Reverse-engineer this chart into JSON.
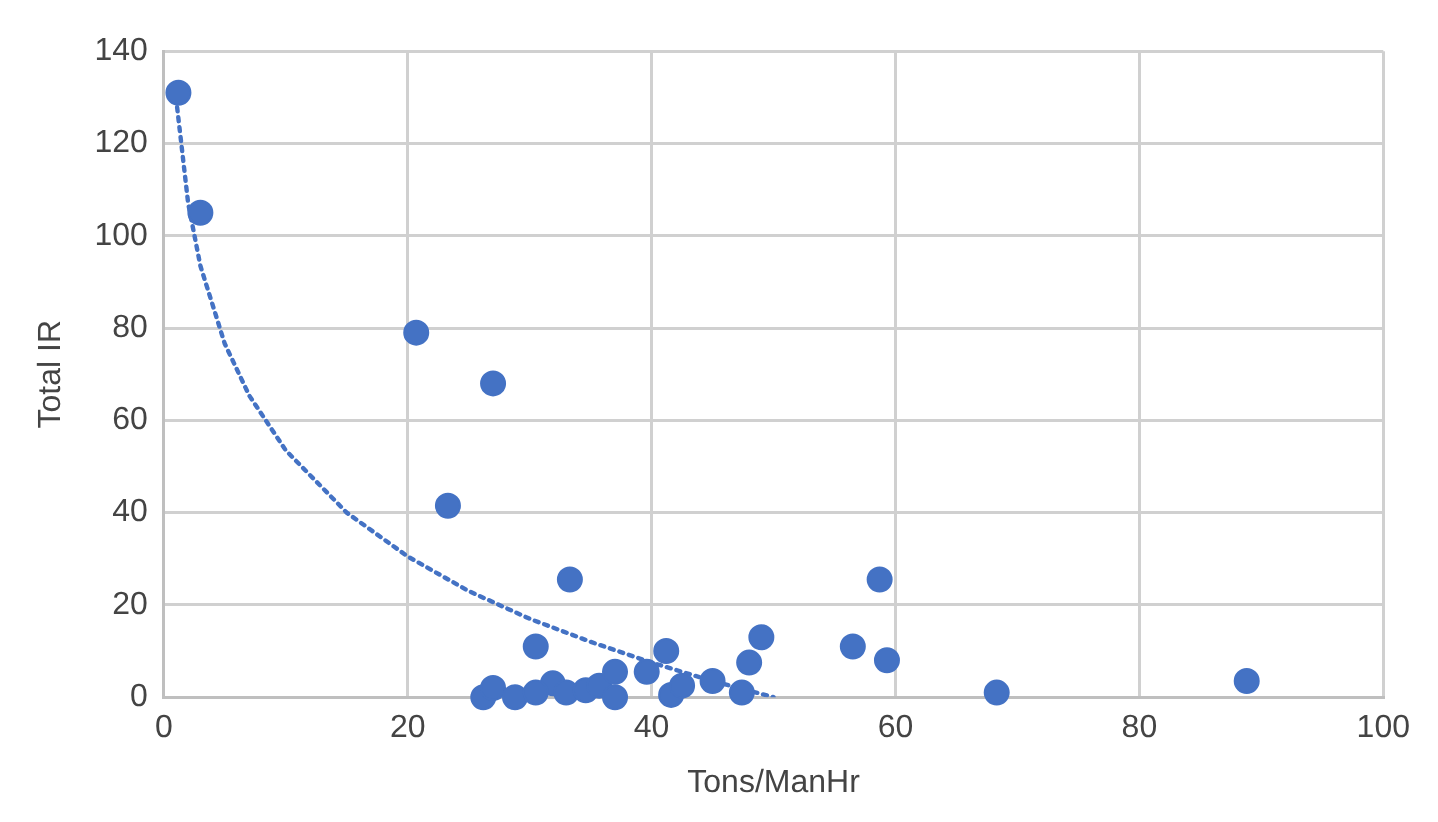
{
  "chart_data": {
    "type": "scatter",
    "xlabel": "Tons/ManHr",
    "ylabel": "Total IR",
    "xlim": [
      0,
      100
    ],
    "xticks": [
      0,
      20,
      40,
      60,
      80,
      100
    ],
    "ylim": [
      0,
      140
    ],
    "yticks": [
      0,
      20,
      40,
      60,
      80,
      100,
      120,
      140
    ],
    "grid": true,
    "legend": false,
    "marker": "circle",
    "series": [
      {
        "color": "#4472c4",
        "x": [
          1.2,
          3,
          20.7,
          27,
          23.3,
          33.3,
          30.5,
          41.2,
          49,
          48,
          56.5,
          58.7,
          59.3,
          68.3,
          88.8,
          26.2,
          27,
          28.8,
          31.9,
          33,
          34.6,
          35.7,
          37,
          37,
          39.6,
          41.6,
          42.5,
          45,
          47.4,
          30.5
        ],
        "values": [
          131,
          105,
          79,
          68,
          41.5,
          25.5,
          11,
          10,
          13,
          7.5,
          11,
          25.5,
          8,
          1,
          3.5,
          0,
          2,
          0,
          3,
          1,
          1.5,
          2.5,
          5.5,
          0,
          5.5,
          0.5,
          2.5,
          3.5,
          1,
          1
        ]
      },
      {
        "type": "line",
        "color": "#4472c4",
        "marker": "none",
        "line_style": "dotted",
        "x": [
          1,
          2,
          3,
          5,
          7,
          10,
          15,
          20,
          25,
          30,
          35,
          40,
          45,
          50
        ],
        "values": [
          130,
          107,
          93.5,
          76.6,
          65.4,
          53.5,
          40,
          30.5,
          23,
          17,
          12,
          7.5,
          3.5,
          0
        ]
      }
    ]
  }
}
